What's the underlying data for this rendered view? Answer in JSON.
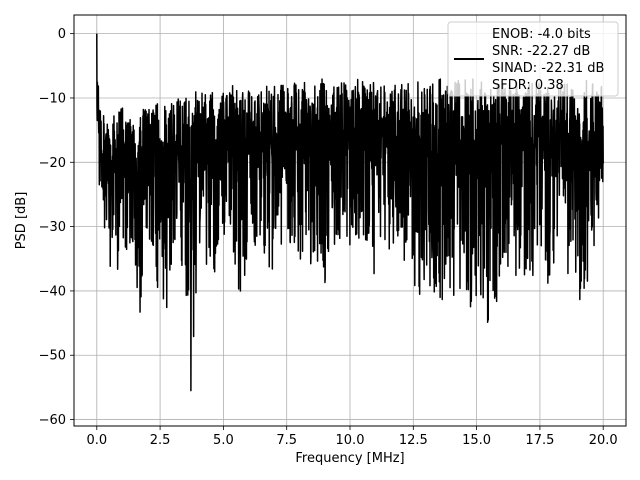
{
  "chart_data": {
    "type": "line",
    "xlabel": "Frequency [MHz]",
    "ylabel": "PSD [dB]",
    "xlim": [
      -0.9,
      20.9
    ],
    "ylim": [
      -61.0,
      2.9
    ],
    "xticks": [
      0.0,
      2.5,
      5.0,
      7.5,
      10.0,
      12.5,
      15.0,
      17.5,
      20.0
    ],
    "xtick_labels": [
      "0.0",
      "2.5",
      "5.0",
      "7.5",
      "10.0",
      "12.5",
      "15.0",
      "17.5",
      "20.0"
    ],
    "yticks": [
      0,
      -10,
      -20,
      -30,
      -40,
      -50,
      -60
    ],
    "ytick_labels": [
      "0",
      "−10",
      "−20",
      "−30",
      "−40",
      "−50",
      "−60"
    ],
    "grid": true,
    "legend": {
      "placement": "top-right",
      "entries": [
        "ENOB: -4.0 bits",
        "SNR: -22.27 dB",
        "SINAD: -22.31 dB",
        "SFDR: 0.38"
      ]
    },
    "series": [
      {
        "color": "#000000",
        "x": [
          0.0,
          0.1,
          0.2,
          0.3,
          0.4,
          0.5,
          0.65,
          0.8,
          1.0,
          1.2,
          1.5,
          1.7,
          2.0,
          2.3,
          2.6,
          3.0,
          3.3,
          3.7,
          4.0,
          4.3,
          4.7,
          5.0,
          5.4,
          5.7,
          6.0,
          6.5,
          7.0,
          7.5,
          8.0,
          8.5,
          9.0,
          9.5,
          10.0,
          10.5,
          11.0,
          11.5,
          12.0,
          12.4,
          12.7,
          13.0,
          13.5,
          14.0,
          14.5,
          15.0,
          15.6,
          16.0,
          16.5,
          17.0,
          17.5,
          18.0,
          18.5,
          19.0,
          19.5,
          20.0
        ],
        "upper": [
          0,
          -8,
          -12,
          -12,
          -13,
          -12,
          -12,
          -12,
          -11,
          -13,
          -12,
          -11,
          -12,
          -10,
          -11,
          -10,
          -10,
          -9,
          -9,
          -9,
          -9,
          -9,
          -8,
          -8,
          -8,
          -8,
          -8,
          -8,
          -7,
          -7,
          -7,
          -8,
          -7,
          -7,
          -7,
          -8,
          -7,
          -8,
          -7,
          -8,
          -7,
          -7,
          -7,
          -7,
          -8,
          -7,
          -7,
          -8,
          -7,
          -8,
          -7,
          -7,
          -7,
          -8
        ],
        "lower": [
          -17,
          -29,
          -35,
          -30,
          -33,
          -40,
          -32,
          -38,
          -32,
          -35,
          -36,
          -45,
          -32,
          -36,
          -50,
          -35,
          -33,
          -57,
          -35,
          -38,
          -40,
          -32,
          -34,
          -46,
          -32,
          -34,
          -38,
          -32,
          -36,
          -36,
          -40,
          -32,
          -35,
          -32,
          -38,
          -34,
          -35,
          -36,
          -42,
          -38,
          -46,
          -40,
          -44,
          -42,
          -48,
          -35,
          -38,
          -42,
          -38,
          -40,
          -36,
          -42,
          -38,
          -24
        ]
      }
    ]
  }
}
